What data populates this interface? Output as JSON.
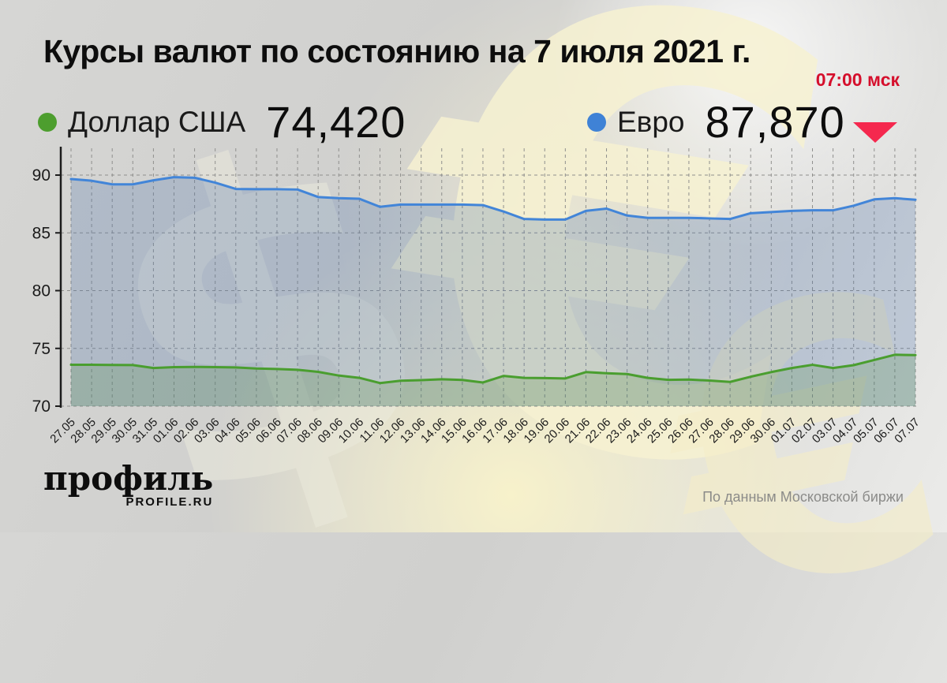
{
  "header": {
    "title": "Курсы валют по состоянию на 7 июля 2021 г.",
    "timestamp": "07:00 мск"
  },
  "legend": {
    "dollar": {
      "label": "Доллар США",
      "value": "74,420"
    },
    "euro": {
      "label": "Евро",
      "value": "87,870",
      "trend": "down"
    }
  },
  "chart_data": {
    "type": "area",
    "x": [
      "27.05",
      "28.05",
      "29.05",
      "30.05",
      "31.05",
      "01.06",
      "02.06",
      "03.06",
      "04.06",
      "05.06",
      "06.06",
      "07.06",
      "08.06",
      "09.06",
      "10.06",
      "11.06",
      "12.06",
      "13.06",
      "14.06",
      "15.06",
      "16.06",
      "17.06",
      "18.06",
      "19.06",
      "20.06",
      "21.06",
      "22.06",
      "23.06",
      "24.06",
      "25.06",
      "26.06",
      "27.06",
      "28.06",
      "29.06",
      "30.06",
      "01.07",
      "02.07",
      "03.07",
      "04.07",
      "05.07",
      "06.07",
      "07.07"
    ],
    "series": [
      {
        "name": "Евро",
        "color": "#4285d8",
        "fill": "rgba(70,110,170,0.25)",
        "values": [
          89.66,
          89.51,
          89.2,
          89.2,
          89.55,
          89.82,
          89.77,
          89.35,
          88.8,
          88.78,
          88.78,
          88.75,
          88.1,
          88.0,
          87.95,
          87.25,
          87.45,
          87.45,
          87.45,
          87.45,
          87.4,
          86.85,
          86.2,
          86.15,
          86.15,
          86.9,
          87.1,
          86.5,
          86.3,
          86.3,
          86.3,
          86.25,
          86.2,
          86.7,
          86.8,
          86.9,
          86.95,
          86.95,
          87.35,
          87.9,
          88.0,
          87.87
        ]
      },
      {
        "name": "Доллар США",
        "color": "#4a9e2f",
        "fill": "rgba(80,140,60,0.22)",
        "values": [
          73.58,
          73.58,
          73.57,
          73.56,
          73.3,
          73.38,
          73.4,
          73.38,
          73.35,
          73.26,
          73.22,
          73.15,
          72.97,
          72.65,
          72.45,
          72.0,
          72.2,
          72.25,
          72.33,
          72.27,
          72.05,
          72.62,
          72.45,
          72.43,
          72.4,
          72.95,
          72.85,
          72.78,
          72.45,
          72.28,
          72.3,
          72.22,
          72.1,
          72.55,
          72.95,
          73.3,
          73.58,
          73.3,
          73.55,
          74.0,
          74.45,
          74.42
        ]
      }
    ],
    "yticks": [
      70,
      75,
      80,
      85,
      90
    ],
    "ylim": [
      70,
      92.0
    ],
    "grid": "dashed",
    "legend_position": "top"
  },
  "footer": {
    "logo_title": "профиль",
    "logo_subtitle": "PROFILE.RU",
    "source": "По данным Московской биржи"
  },
  "colors": {
    "dollar_green": "#4d9e2e",
    "euro_blue": "#3f82d6",
    "time_red": "#d50f2c",
    "trend_red": "#f5284e"
  },
  "icons": {
    "dollar_dot": "circle",
    "euro_dot": "circle",
    "trend_down": "triangle-down"
  }
}
